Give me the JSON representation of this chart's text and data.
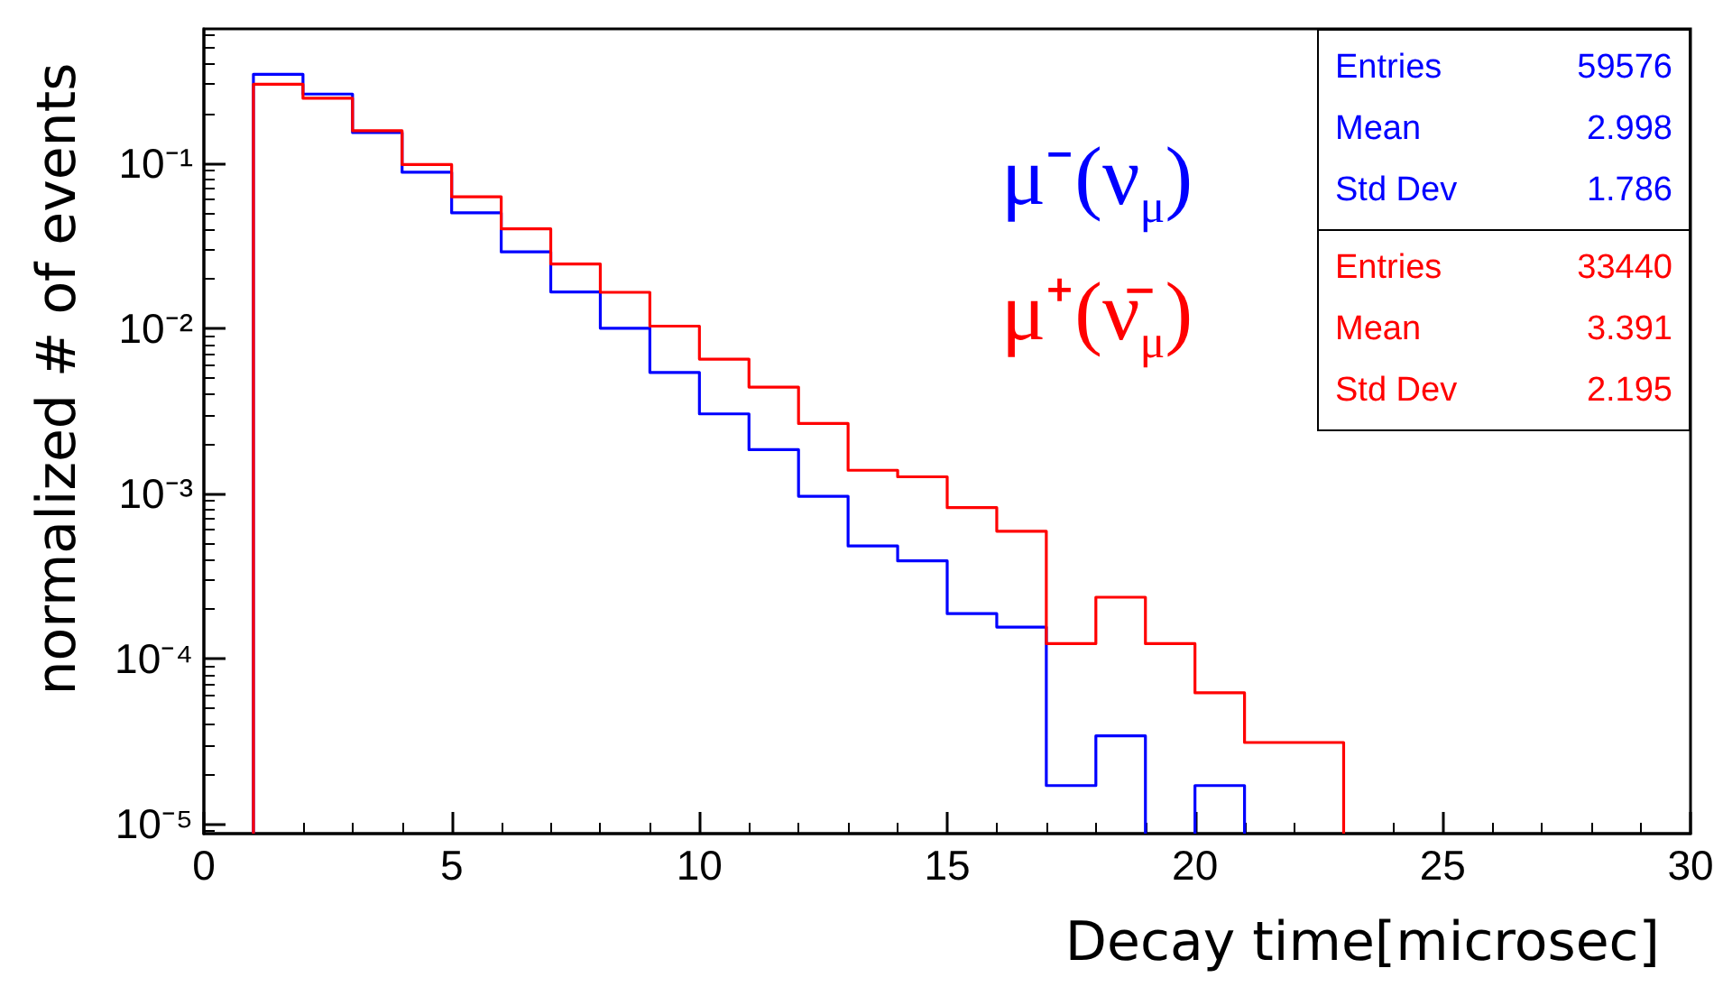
{
  "chart_data": {
    "type": "histogram",
    "xlabel": "Decay time[microsec]",
    "ylabel": "normalized # of events",
    "bins": [
      1,
      2,
      3,
      4,
      5,
      6,
      7,
      8,
      9,
      10,
      11,
      12,
      13,
      14,
      15,
      16,
      17,
      18,
      19,
      20,
      21,
      22,
      23
    ],
    "series": [
      {
        "name": "μ⁻(ν$_{μ}$)",
        "color": "#0000ff",
        "bins": [
          1,
          2,
          3,
          4,
          5,
          6,
          7,
          8,
          9,
          10,
          11,
          12,
          13,
          14,
          15,
          16,
          17,
          18,
          19,
          20,
          21
        ],
        "values": [
          0.345,
          0.262,
          0.153,
          0.088,
          0.05,
          0.029,
          0.0166,
          0.01,
          0.0054,
          0.00303,
          0.00184,
          0.00096,
          0.00048,
          0.00039,
          0.000187,
          0.000155,
          1.7e-05,
          3.4e-05,
          null,
          1.7e-05
        ]
      },
      {
        "name": "μ⁺(ν̄$_{μ}$)",
        "color": "#ff0000",
        "values": [
          0.3,
          0.247,
          0.157,
          0.098,
          0.0625,
          0.04,
          0.0245,
          0.0165,
          0.0103,
          0.0065,
          0.0044,
          0.00265,
          0.00138,
          0.00126,
          0.00082,
          0.00059,
          0.000123,
          0.000235,
          0.000123,
          6.2e-05,
          3.1e-05,
          3.1e-05
        ]
      }
    ],
    "annotations": [
      "Entries 59576",
      "Mean 2.998",
      "Std Dev 1.786",
      "Entries 33440",
      "Mean 3.391",
      "Std Dev 2.195"
    ],
    "xlim": [
      0,
      30
    ],
    "xticks": [
      0,
      5,
      10,
      15,
      20,
      25,
      30
    ],
    "ylim": [
      8.7e-06,
      0.65
    ],
    "yticks": [
      {
        "value": 1e-05,
        "label": "10⁻⁵"
      },
      {
        "value": 0.0001,
        "label": "10⁻⁴"
      },
      {
        "value": 0.001,
        "label": "10⁻³"
      },
      {
        "value": 0.01,
        "label": "10⁻²"
      },
      {
        "value": 0.1,
        "label": "10⁻¹"
      }
    ],
    "log": "y",
    "grid": false,
    "legend": false
  }
}
